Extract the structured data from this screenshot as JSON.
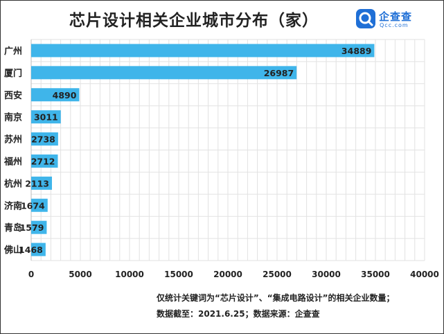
{
  "chart_data": {
    "type": "bar",
    "orientation": "horizontal",
    "title": "芯片设计相关企业城市分布（家）",
    "categories": [
      "广州",
      "厦门",
      "西安",
      "南京",
      "苏州",
      "福州",
      "杭州",
      "济南",
      "青岛",
      "佛山"
    ],
    "values": [
      34889,
      26987,
      4890,
      3011,
      2738,
      2712,
      2113,
      1674,
      1579,
      1468
    ],
    "xlim": [
      0,
      40000
    ],
    "x_ticks": [
      0,
      5000,
      10000,
      15000,
      20000,
      25000,
      30000,
      35000,
      40000
    ],
    "xlabel": "",
    "ylabel": "",
    "grid": true,
    "bar_color": "#3fb5ea",
    "data_labels": true
  },
  "branding": {
    "name": "企查查",
    "domain": "Qcc.com",
    "icon": "magnifier-logo-icon",
    "color": "#1f6fd6"
  },
  "notes": [
    "仅统计关键词为“芯片设计”、“集成电路设计”的相关企业数量；",
    "数据截至：2021.6.25；数据来源：企查查"
  ]
}
